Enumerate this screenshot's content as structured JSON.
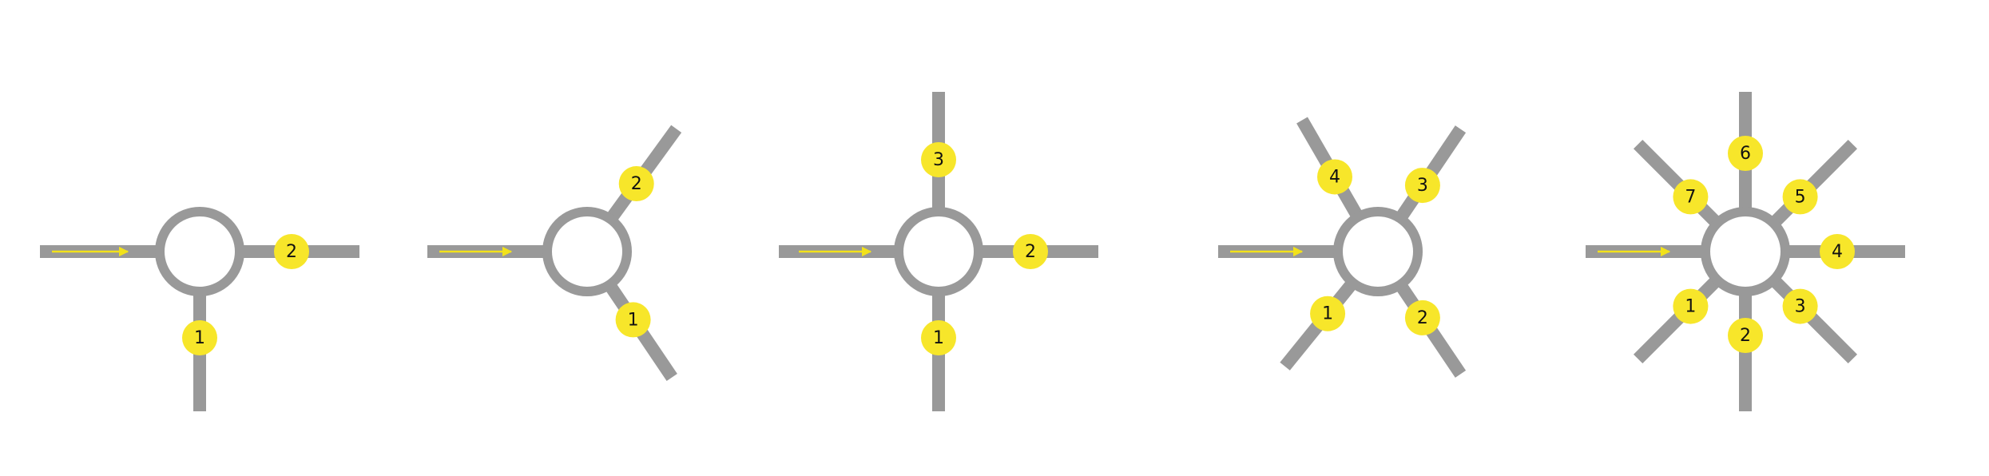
{
  "colors": {
    "road": "#999999",
    "marker": "#f7e62a",
    "arrow": "#f2e21a",
    "label": "#111111",
    "background": "#ffffff"
  },
  "roundabouts": [
    {
      "name": "roundabout-3-way-t",
      "entry_direction": "from-left",
      "exits": [
        {
          "number": "1",
          "direction": "south"
        },
        {
          "number": "2",
          "direction": "east"
        }
      ]
    },
    {
      "name": "roundabout-3-way-y",
      "entry_direction": "from-left",
      "exits": [
        {
          "number": "1",
          "direction": "south-east"
        },
        {
          "number": "2",
          "direction": "north-east"
        }
      ]
    },
    {
      "name": "roundabout-4-way",
      "entry_direction": "from-left",
      "exits": [
        {
          "number": "1",
          "direction": "south"
        },
        {
          "number": "2",
          "direction": "east"
        },
        {
          "number": "3",
          "direction": "north"
        }
      ]
    },
    {
      "name": "roundabout-5-way",
      "entry_direction": "from-left",
      "exits": [
        {
          "number": "1",
          "direction": "south-west"
        },
        {
          "number": "2",
          "direction": "south-east"
        },
        {
          "number": "3",
          "direction": "north-east"
        },
        {
          "number": "4",
          "direction": "north-west"
        }
      ]
    },
    {
      "name": "roundabout-8-way",
      "entry_direction": "from-left",
      "exits": [
        {
          "number": "1",
          "direction": "south-west"
        },
        {
          "number": "2",
          "direction": "south"
        },
        {
          "number": "3",
          "direction": "south-east"
        },
        {
          "number": "4",
          "direction": "east"
        },
        {
          "number": "5",
          "direction": "north-east"
        },
        {
          "number": "6",
          "direction": "north"
        },
        {
          "number": "7",
          "direction": "north-west"
        }
      ]
    }
  ]
}
